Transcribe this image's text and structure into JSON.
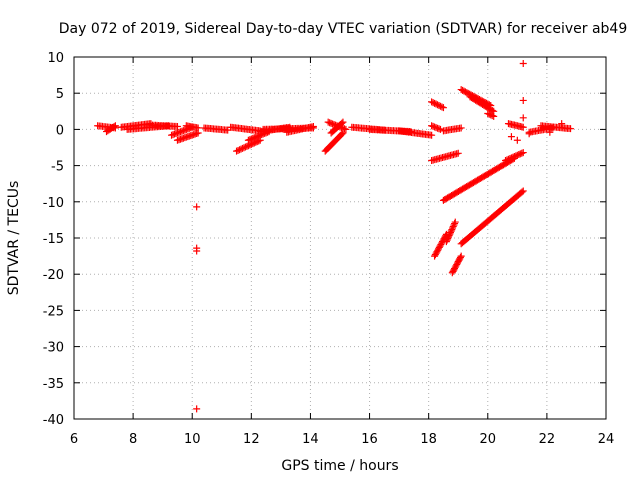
{
  "chart_data": {
    "type": "scatter",
    "title": "Day 072 of 2019, Sidereal Day-to-day VTEC variation (SDTVAR) for receiver ab49",
    "xlabel": "GPS time / hours",
    "ylabel": "SDTVAR / TECUs",
    "xlim": [
      6,
      24
    ],
    "ylim": [
      -40,
      10
    ],
    "xticks": [
      6,
      8,
      10,
      12,
      14,
      16,
      18,
      20,
      22,
      24
    ],
    "yticks": [
      10,
      5,
      0,
      -5,
      -10,
      -15,
      -20,
      -25,
      -30,
      -35,
      -40
    ],
    "grid": true,
    "marker": "+",
    "series": [
      {
        "name": "ab49",
        "color": "#ff0000",
        "segments": [
          {
            "x0": 6.8,
            "x1": 7.4,
            "y0": 0.5,
            "y1": 0.2
          },
          {
            "x0": 7.1,
            "x1": 7.4,
            "y0": -0.3,
            "y1": 0.5
          },
          {
            "x0": 7.6,
            "x1": 8.6,
            "y0": 0.3,
            "y1": 0.8
          },
          {
            "x0": 7.8,
            "x1": 9.2,
            "y0": 0.0,
            "y1": 0.5
          },
          {
            "x0": 8.6,
            "x1": 9.5,
            "y0": 0.6,
            "y1": 0.4
          },
          {
            "x0": 9.3,
            "x1": 10.0,
            "y0": -0.8,
            "y1": 0.3
          },
          {
            "x0": 9.5,
            "x1": 10.2,
            "y0": -1.5,
            "y1": -0.5
          },
          {
            "x0": 9.8,
            "x1": 10.2,
            "y0": 0.5,
            "y1": 0.2
          },
          {
            "x0": 10.4,
            "x1": 11.2,
            "y0": 0.2,
            "y1": -0.1
          },
          {
            "x0": 11.3,
            "x1": 12.3,
            "y0": 0.3,
            "y1": -0.2
          },
          {
            "x0": 11.5,
            "x1": 12.3,
            "y0": -3.0,
            "y1": -1.5
          },
          {
            "x0": 11.9,
            "x1": 12.6,
            "y0": -1.5,
            "y1": -0.3
          },
          {
            "x0": 12.3,
            "x1": 13.3,
            "y0": -0.3,
            "y1": 0.3
          },
          {
            "x0": 12.4,
            "x1": 14.1,
            "y0": 0.0,
            "y1": 0.2
          },
          {
            "x0": 13.2,
            "x1": 14.1,
            "y0": -0.4,
            "y1": 0.4
          },
          {
            "x0": 14.5,
            "x1": 15.1,
            "y0": -3.0,
            "y1": -0.5
          },
          {
            "x0": 14.6,
            "x1": 15.2,
            "y0": 1.0,
            "y1": 0.0
          },
          {
            "x0": 14.7,
            "x1": 15.1,
            "y0": -0.5,
            "y1": 1.0
          },
          {
            "x0": 15.4,
            "x1": 16.5,
            "y0": 0.3,
            "y1": -0.1
          },
          {
            "x0": 16.0,
            "x1": 17.4,
            "y0": 0.0,
            "y1": -0.3
          },
          {
            "x0": 17.0,
            "x1": 18.1,
            "y0": -0.2,
            "y1": -0.8
          },
          {
            "x0": 18.1,
            "x1": 18.5,
            "y0": 3.8,
            "y1": 3.0
          },
          {
            "x0": 18.1,
            "x1": 18.4,
            "y0": 0.5,
            "y1": 0.0
          },
          {
            "x0": 18.5,
            "x1": 19.1,
            "y0": -0.2,
            "y1": 0.2
          },
          {
            "x0": 18.1,
            "x1": 19.0,
            "y0": -4.3,
            "y1": -3.3
          },
          {
            "x0": 18.5,
            "x1": 20.9,
            "y0": -9.8,
            "y1": -4.0
          },
          {
            "x0": 20.6,
            "x1": 21.2,
            "y0": -4.3,
            "y1": -3.2
          },
          {
            "x0": 18.2,
            "x1": 18.6,
            "y0": -17.5,
            "y1": -14.5
          },
          {
            "x0": 18.6,
            "x1": 18.9,
            "y0": -15.5,
            "y1": -12.8
          },
          {
            "x0": 18.8,
            "x1": 19.1,
            "y0": -19.8,
            "y1": -17.5
          },
          {
            "x0": 19.1,
            "x1": 21.2,
            "y0": -15.8,
            "y1": -8.5
          },
          {
            "x0": 19.1,
            "x1": 20.1,
            "y0": 5.5,
            "y1": 3.3
          },
          {
            "x0": 19.4,
            "x1": 20.2,
            "y0": 4.5,
            "y1": 2.5
          },
          {
            "x0": 20.0,
            "x1": 20.2,
            "y0": 2.2,
            "y1": 1.8
          },
          {
            "x0": 20.7,
            "x1": 21.2,
            "y0": 0.8,
            "y1": 0.3
          },
          {
            "x0": 21.4,
            "x1": 22.2,
            "y0": -0.4,
            "y1": 0.2
          },
          {
            "x0": 21.8,
            "x1": 22.8,
            "y0": 0.5,
            "y1": 0.1
          }
        ],
        "points": [
          {
            "x": 20.8,
            "y": -1.0
          },
          {
            "x": 21.0,
            "y": -1.5
          },
          {
            "x": 21.2,
            "y": 9.1
          },
          {
            "x": 21.2,
            "y": 4.0
          },
          {
            "x": 21.2,
            "y": 1.6
          },
          {
            "x": 21.4,
            "y": -0.6
          },
          {
            "x": 22.1,
            "y": -0.4
          },
          {
            "x": 22.5,
            "y": 0.8
          },
          {
            "x": 10.15,
            "y": -10.7
          },
          {
            "x": 10.15,
            "y": -16.4
          },
          {
            "x": 10.15,
            "y": -16.8
          },
          {
            "x": 10.15,
            "y": -38.6
          }
        ]
      }
    ]
  }
}
